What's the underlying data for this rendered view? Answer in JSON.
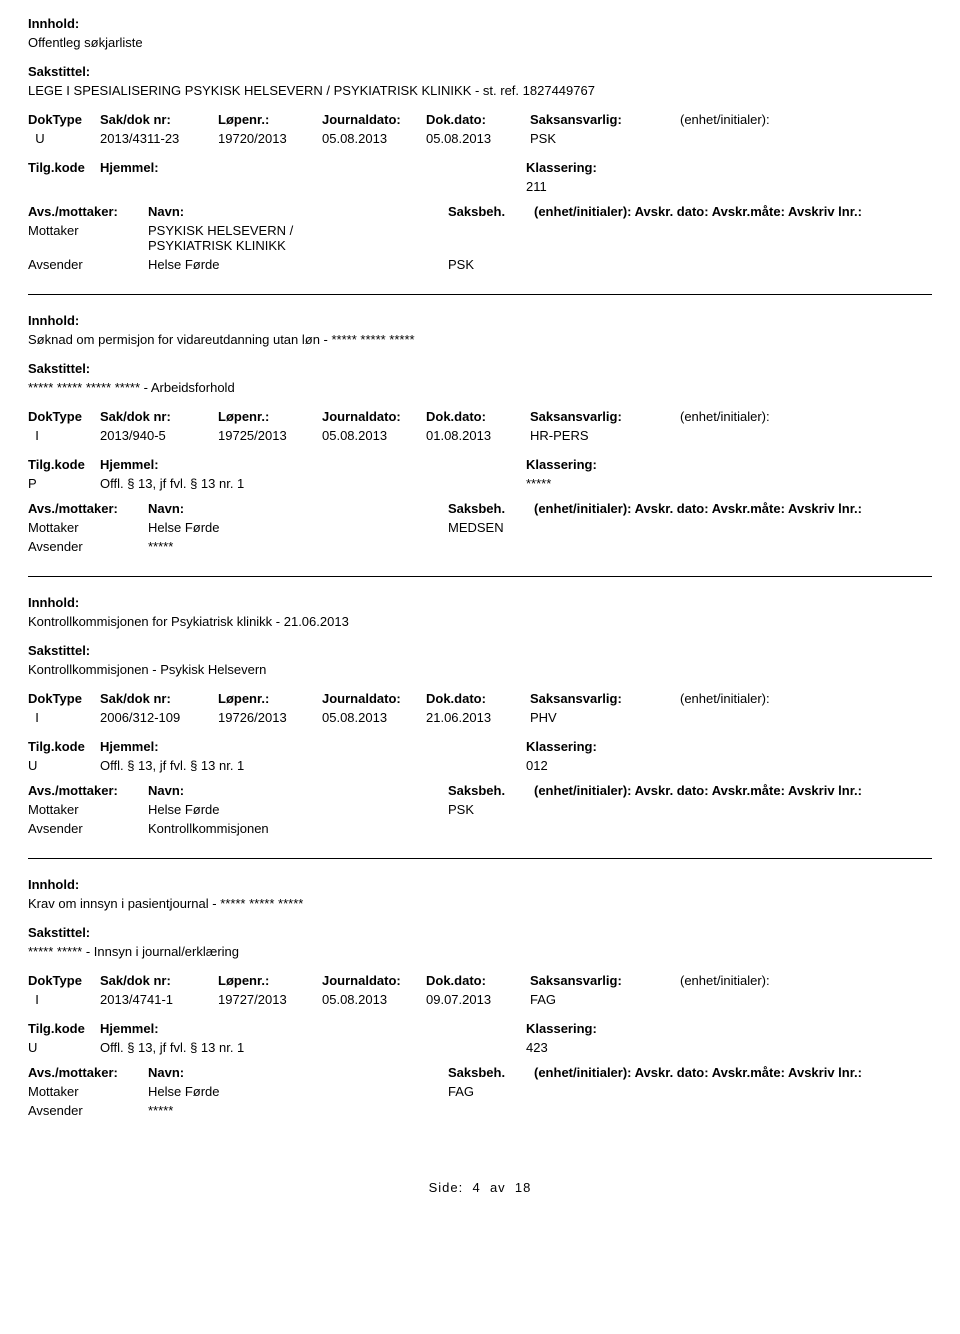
{
  "labels": {
    "innhold": "Innhold:",
    "sakstittel": "Sakstittel:",
    "doktype": "DokType",
    "sakdoknr": "Sak/dok nr:",
    "lopenr": "Løpenr.:",
    "journaldato": "Journaldato:",
    "dokdato": "Dok.dato:",
    "saksansvarlig": "Saksansvarlig:",
    "enhet": "(enhet/initialer):",
    "tilgkode": "Tilg.kode",
    "hjemmel": "Hjemmel:",
    "klassering": "Klassering:",
    "avsmottaker": "Avs./mottaker:",
    "navn": "Navn:",
    "saksbeh": "Saksbeh.",
    "enhet2": "(enhet/initialer):",
    "avskr": "Avskr. dato:  Avskr.måte:  Avskriv lnr.:",
    "mottaker": "Mottaker",
    "avsender": "Avsender"
  },
  "records": [
    {
      "innhold": "Offentleg søkjarliste",
      "sakstittel": "LEGE I SPESIALISERING PSYKISK HELSEVERN / PSYKIATRISK KLINIKK - st. ref. 1827449767",
      "doktype": "U",
      "sakdoknr": "2013/4311-23",
      "lopenr": "19720/2013",
      "journaldato": "05.08.2013",
      "dokdato": "05.08.2013",
      "saksansvarlig": "PSK",
      "tilgkode": "",
      "hjemmel": "",
      "klassering": "211",
      "mottaker_navn": "PSYKISK HELSEVERN /\nPSYKIATRISK KLINIKK",
      "mottaker_saksbeh": "",
      "avsender_navn": "Helse Førde",
      "avsender_saksbeh": "PSK",
      "show_avskr": true
    },
    {
      "innhold": "Søknad om permisjon for vidareutdanning utan løn - ***** ***** *****",
      "sakstittel": "***** ***** ***** ***** - Arbeidsforhold",
      "doktype": "I",
      "sakdoknr": "2013/940-5",
      "lopenr": "19725/2013",
      "journaldato": "05.08.2013",
      "dokdato": "01.08.2013",
      "saksansvarlig": "HR-PERS",
      "tilgkode": "P",
      "hjemmel": "Offl. § 13, jf fvl. § 13 nr. 1",
      "klassering": "*****",
      "mottaker_navn": "Helse Førde",
      "mottaker_saksbeh": "MEDSEN",
      "avsender_navn": "*****",
      "avsender_saksbeh": "",
      "show_avskr": true
    },
    {
      "innhold": "Kontrollkommisjonen for Psykiatrisk klinikk - 21.06.2013",
      "sakstittel": "Kontrollkommisjonen - Psykisk Helsevern",
      "doktype": "I",
      "sakdoknr": "2006/312-109",
      "lopenr": "19726/2013",
      "journaldato": "05.08.2013",
      "dokdato": "21.06.2013",
      "saksansvarlig": "PHV",
      "tilgkode": "U",
      "hjemmel": "Offl. § 13, jf fvl. § 13 nr. 1",
      "klassering": "012",
      "mottaker_navn": "Helse Førde",
      "mottaker_saksbeh": "PSK",
      "avsender_navn": "Kontrollkommisjonen",
      "avsender_saksbeh": "",
      "show_avskr": true
    },
    {
      "innhold": "Krav om innsyn i pasientjournal - ***** ***** *****",
      "sakstittel": "***** ***** - Innsyn i journal/erklæring",
      "doktype": "I",
      "sakdoknr": "2013/4741-1",
      "lopenr": "19727/2013",
      "journaldato": "05.08.2013",
      "dokdato": "09.07.2013",
      "saksansvarlig": "FAG",
      "tilgkode": "U",
      "hjemmel": "Offl. § 13, jf fvl. § 13 nr. 1",
      "klassering": "423",
      "mottaker_navn": "Helse Førde",
      "mottaker_saksbeh": "FAG",
      "avsender_navn": "*****",
      "avsender_saksbeh": "",
      "show_avskr": true
    }
  ],
  "footer": {
    "side": "Side:",
    "page": "4",
    "av": "av",
    "total": "18"
  }
}
